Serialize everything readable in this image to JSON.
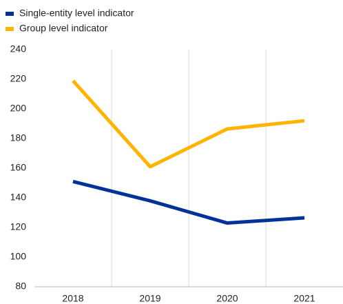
{
  "chart_data": {
    "type": "line",
    "categories": [
      "2018",
      "2019",
      "2020",
      "2021"
    ],
    "series": [
      {
        "name": "Single-entity level indicator",
        "color": "#003299",
        "values": [
          151,
          138,
          123,
          126.5
        ]
      },
      {
        "name": "Group level indicator",
        "color": "#ffb400",
        "values": [
          219,
          161,
          186.5,
          192
        ]
      }
    ],
    "ylim": [
      80,
      240
    ],
    "yticks": [
      80,
      100,
      120,
      140,
      160,
      180,
      200,
      220,
      240
    ],
    "grid": false
  }
}
